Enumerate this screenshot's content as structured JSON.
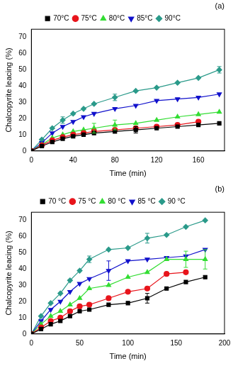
{
  "chart_data": [
    {
      "type": "line",
      "title": "(a)",
      "x_label": "Time (min)",
      "y_label": "Chalcopyrite leacing (%)",
      "x": [
        0,
        10,
        20,
        30,
        40,
        50,
        60,
        80,
        100,
        120,
        140,
        160,
        180
      ],
      "xlim": [
        0,
        185
      ],
      "xticks": [
        0,
        40,
        80,
        120,
        160
      ],
      "ylim": [
        0,
        75
      ],
      "yticks": [
        0,
        10,
        20,
        30,
        40,
        50,
        60,
        70
      ],
      "grid": false,
      "legend": "top",
      "series": [
        {
          "name": "70°C",
          "color": "#000000",
          "marker": "square",
          "values": [
            0,
            3,
            5.5,
            7.5,
            9,
            10,
            11,
            12,
            13,
            14,
            15,
            16,
            17
          ],
          "errors": [
            null,
            null,
            null,
            null,
            null,
            null,
            null,
            null,
            2,
            null,
            null,
            null,
            null
          ]
        },
        {
          "name": "75°C",
          "color": "#e8141b",
          "marker": "circle",
          "values": [
            0,
            3.5,
            6.5,
            8.5,
            10,
            11,
            12,
            13,
            14,
            15,
            16,
            18,
            null
          ],
          "errors": [
            null,
            null,
            null,
            null,
            null,
            null,
            null,
            null,
            null,
            null,
            null,
            null,
            null
          ]
        },
        {
          "name": "80°C",
          "color": "#33dd33",
          "marker": "triangle-up",
          "values": [
            0,
            4,
            8,
            10,
            12,
            13,
            14,
            16,
            17,
            19,
            21,
            22.5,
            24
          ],
          "errors": [
            null,
            null,
            null,
            null,
            null,
            null,
            3,
            3,
            null,
            null,
            null,
            null,
            null
          ]
        },
        {
          "name": "85°C",
          "color": "#1111cc",
          "marker": "triangle-down",
          "values": [
            0,
            5,
            11,
            15,
            18,
            21,
            23,
            26,
            28,
            31,
            32,
            33,
            35
          ],
          "errors": [
            null,
            null,
            null,
            null,
            null,
            null,
            null,
            null,
            null,
            null,
            null,
            null,
            null
          ]
        },
        {
          "name": "90°C",
          "color": "#2a9a8a",
          "marker": "diamond",
          "values": [
            0,
            7,
            14,
            19,
            23,
            26,
            29,
            33,
            37,
            39,
            42,
            45,
            50
          ],
          "errors": [
            null,
            null,
            null,
            2,
            null,
            null,
            null,
            2,
            null,
            null,
            null,
            null,
            2
          ]
        }
      ]
    },
    {
      "type": "line",
      "title": "(b)",
      "x_label": "Time (min)",
      "y_label": "Chalcopyrite leacing (%)",
      "x": [
        0,
        10,
        20,
        30,
        40,
        50,
        60,
        80,
        100,
        120,
        140,
        160,
        180
      ],
      "xlim": [
        0,
        200
      ],
      "xticks": [
        0,
        50,
        100,
        150,
        200
      ],
      "ylim": [
        0,
        75
      ],
      "yticks": [
        0,
        10,
        20,
        30,
        40,
        50,
        60,
        70
      ],
      "grid": false,
      "legend": "top",
      "series": [
        {
          "name": "70 °C",
          "color": "#000000",
          "marker": "square",
          "values": [
            0,
            3,
            6,
            8,
            11,
            14,
            15,
            18,
            19,
            22,
            28,
            32,
            35
          ],
          "errors": [
            null,
            null,
            null,
            null,
            null,
            null,
            null,
            null,
            null,
            3,
            null,
            null,
            null
          ]
        },
        {
          "name": "75 °C",
          "color": "#e8141b",
          "marker": "circle",
          "values": [
            0,
            4,
            8,
            10,
            14,
            17,
            18,
            22,
            26,
            28,
            37,
            38,
            null
          ],
          "errors": [
            null,
            null,
            null,
            null,
            null,
            null,
            null,
            null,
            null,
            null,
            null,
            null,
            null
          ]
        },
        {
          "name": "80 °C",
          "color": "#33dd33",
          "marker": "triangle-up",
          "values": [
            0,
            6,
            11,
            14,
            18,
            22,
            28,
            30,
            35,
            38,
            46,
            46,
            46
          ],
          "errors": [
            null,
            null,
            null,
            null,
            null,
            null,
            null,
            null,
            null,
            null,
            null,
            5,
            6
          ]
        },
        {
          "name": "85 °C",
          "color": "#1111cc",
          "marker": "triangle-down",
          "values": [
            0,
            8,
            15,
            20,
            26,
            31,
            34,
            39,
            45,
            46,
            47,
            48,
            52
          ],
          "errors": [
            null,
            null,
            null,
            null,
            null,
            null,
            null,
            6,
            null,
            null,
            null,
            null,
            null
          ]
        },
        {
          "name": "90 °C",
          "color": "#2a9a8a",
          "marker": "diamond",
          "values": [
            0,
            11,
            19,
            25,
            33,
            39,
            46,
            52,
            53,
            59,
            61,
            66,
            70
          ],
          "errors": [
            null,
            null,
            null,
            null,
            null,
            null,
            2,
            null,
            null,
            3,
            null,
            null,
            null
          ]
        }
      ]
    }
  ]
}
